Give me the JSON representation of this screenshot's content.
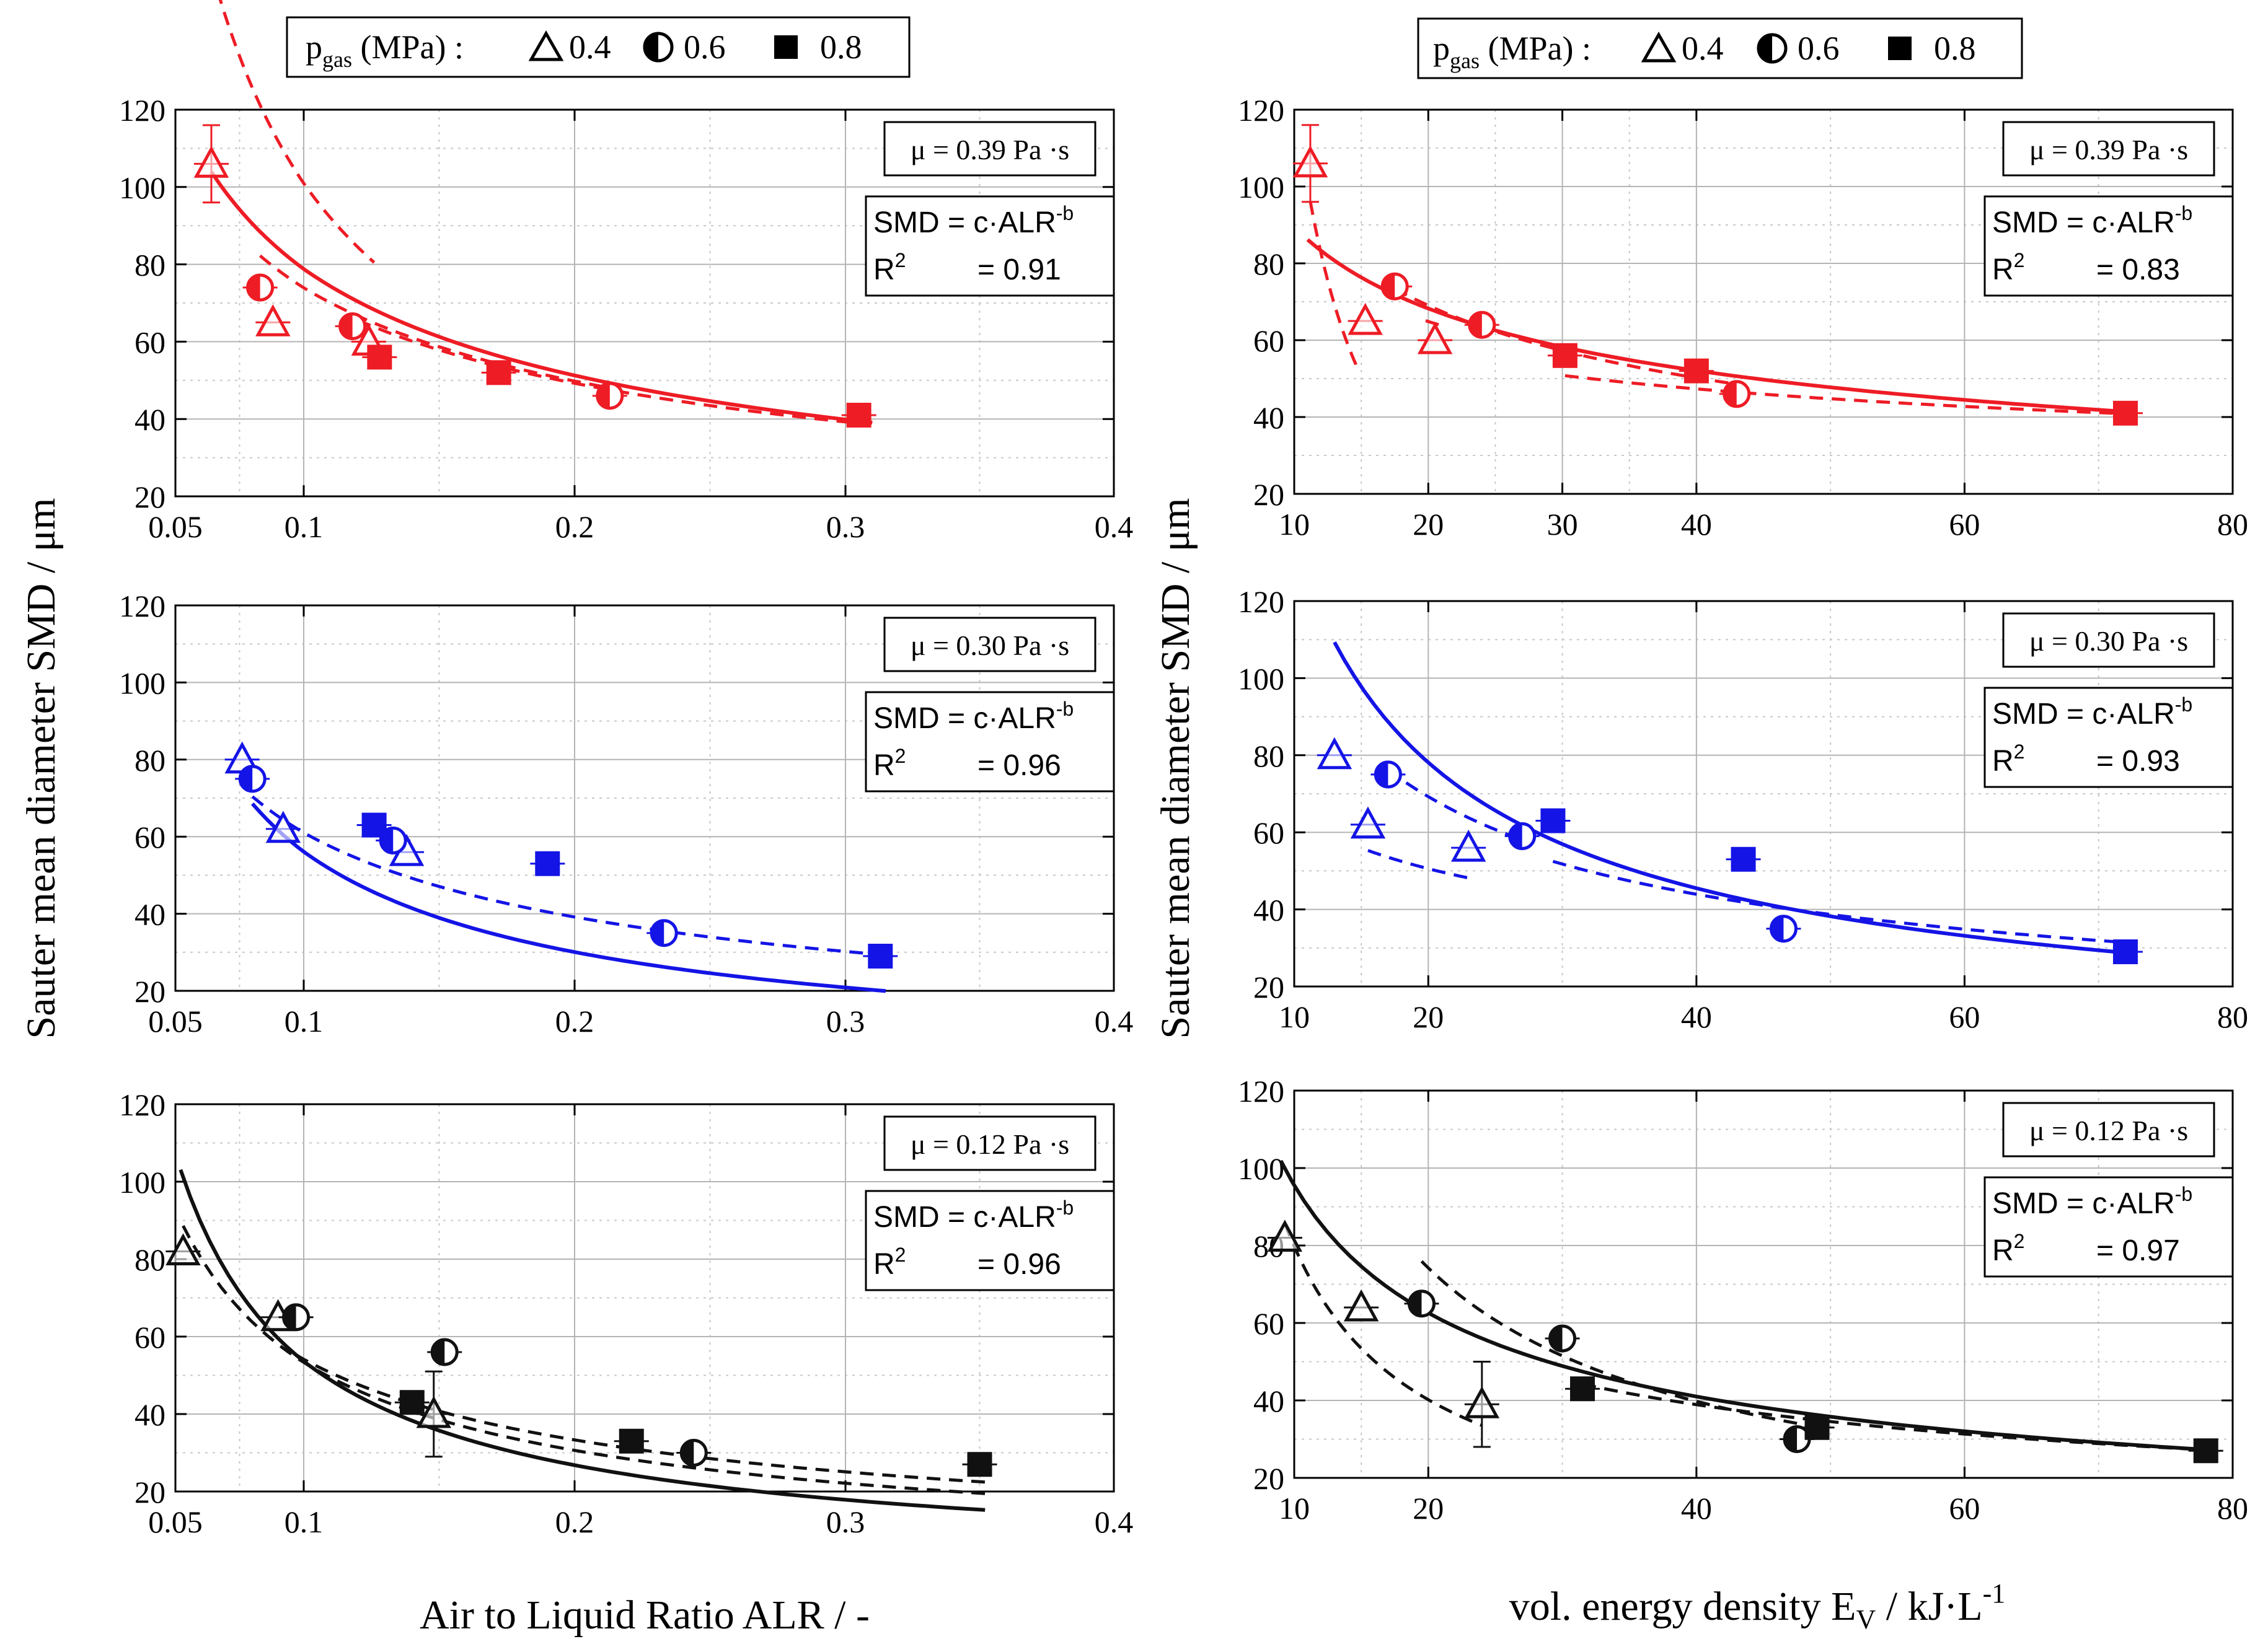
{
  "figure": {
    "ylabel_shared": "Sauter mean diameter SMD / μm",
    "xlabel_alr": "Air to Liquid Ratio ALR / -",
    "xlabel_ev": {
      "main": "vol. energy density E",
      "sub": "V",
      "unit": " / kJ·L",
      "sup": "-1"
    }
  },
  "legend": {
    "prefix": "p",
    "prefix_sub": "gas",
    "unit": " (MPa) :",
    "items": [
      {
        "marker": "open-triangle",
        "label": "0.4"
      },
      {
        "marker": "half-circle",
        "label": "0.6"
      },
      {
        "marker": "filled-square",
        "label": "0.8"
      }
    ]
  },
  "chart_data": [
    {
      "type": "scatter",
      "panel": "alr-red",
      "color": "#ee1c25",
      "xlim": [
        0.05,
        0.4
      ],
      "ylim": [
        20,
        120
      ],
      "xticks": [
        "0.05",
        "0.1",
        "0.2",
        "0.3",
        "0.4"
      ],
      "yticks": [
        "20",
        "40",
        "60",
        "80",
        "100",
        "120"
      ],
      "viscosity_label": "μ = 0.39 Pa ·s",
      "fit_label": "SMD  = c·ALR",
      "fit_sup": "-b",
      "r2_label": "R",
      "r2_sup": "2",
      "r2_value": "= 0.91",
      "series": [
        {
          "name": "0.4",
          "marker": "triangle",
          "points": [
            [
              0.064,
              106,
              10
            ],
            [
              0.088,
              65,
              0
            ],
            [
              0.124,
              60,
              0
            ]
          ]
        },
        {
          "name": "0.6",
          "marker": "half",
          "points": [
            [
              0.083,
              74,
              0
            ],
            [
              0.118,
              64,
              0
            ],
            [
              0.213,
              46,
              0
            ]
          ]
        },
        {
          "name": "0.8",
          "marker": "square",
          "points": [
            [
              0.128,
              56,
              0
            ],
            [
              0.172,
              52,
              0
            ],
            [
              0.305,
              41,
              0
            ]
          ]
        }
      ],
      "fits": [
        {
          "style": "solid",
          "c": 18.9,
          "b": 0.62,
          "x": [
            0.064,
            0.31
          ]
        },
        {
          "style": "dashed",
          "c": 10.57,
          "b": 0.98,
          "x": [
            0.064,
            0.126
          ]
        },
        {
          "style": "dashed",
          "c": 19.9,
          "b": 0.57,
          "x": [
            0.083,
            0.215
          ]
        },
        {
          "style": "dashed",
          "c": 20.0,
          "b": 0.56,
          "x": [
            0.12,
            0.305
          ]
        }
      ]
    },
    {
      "type": "scatter",
      "panel": "alr-blue",
      "color": "#1414e6",
      "xlim": [
        0.05,
        0.4
      ],
      "ylim": [
        20,
        120
      ],
      "xticks": [
        "0.05",
        "0.1",
        "0.2",
        "0.3",
        "0.4"
      ],
      "yticks": [
        "20",
        "40",
        "60",
        "80",
        "100",
        "120"
      ],
      "viscosity_label": "μ = 0.30 Pa ·s",
      "fit_label": "SMD  = c·ALR",
      "fit_sup": "-b",
      "r2_label": "R",
      "r2_sup": "2",
      "r2_value": "= 0.96",
      "series": [
        {
          "name": "0.4",
          "marker": "triangle",
          "points": [
            [
              0.076,
              80,
              0
            ],
            [
              0.092,
              62,
              0
            ],
            [
              0.138,
              56,
              0
            ]
          ]
        },
        {
          "name": "0.6",
          "marker": "half",
          "points": [
            [
              0.08,
              75,
              0
            ],
            [
              0.133,
              59,
              0
            ],
            [
              0.233,
              35,
              0
            ]
          ]
        },
        {
          "name": "0.8",
          "marker": "square",
          "points": [
            [
              0.126,
              63,
              0
            ],
            [
              0.19,
              53,
              0
            ],
            [
              0.313,
              29,
              0
            ]
          ]
        }
      ],
      "fits": [
        {
          "style": "solid",
          "c": 7.06,
          "b": 0.9,
          "x": [
            0.08,
            0.315
          ]
        },
        {
          "style": "dashed",
          "c": 13.98,
          "b": 0.64,
          "x": [
            0.08,
            0.315
          ]
        }
      ]
    },
    {
      "type": "scatter",
      "panel": "alr-black",
      "color": "#111111",
      "xlim": [
        0.05,
        0.4
      ],
      "ylim": [
        20,
        120
      ],
      "xticks": [
        "0.05",
        "0.1",
        "0.2",
        "0.3",
        "0.4"
      ],
      "yticks": [
        "20",
        "40",
        "60",
        "80",
        "100",
        "120"
      ],
      "viscosity_label": "μ = 0.12 Pa ·s",
      "fit_label": "SMD  = c·ALR",
      "fit_sup": "-b",
      "r2_label": "R",
      "r2_sup": "2",
      "r2_value": "= 0.96",
      "series": [
        {
          "name": "0.4",
          "marker": "triangle",
          "points": [
            [
              0.053,
              82,
              0
            ],
            [
              0.09,
              65,
              0
            ],
            [
              0.148,
              40,
              11
            ]
          ]
        },
        {
          "name": "0.6",
          "marker": "half",
          "points": [
            [
              0.097,
              65,
              0
            ],
            [
              0.152,
              56,
              0
            ],
            [
              0.244,
              30,
              0
            ]
          ]
        },
        {
          "name": "0.8",
          "marker": "square",
          "points": [
            [
              0.14,
              43,
              0
            ],
            [
              0.221,
              33,
              0
            ],
            [
              0.35,
              27,
              0
            ]
          ]
        }
      ],
      "fits": [
        {
          "style": "solid",
          "c": 5.36,
          "b": 1.0,
          "x": [
            0.052,
            0.352
          ]
        },
        {
          "style": "dashed",
          "c": 8.45,
          "b": 0.8,
          "x": [
            0.053,
            0.352
          ]
        },
        {
          "style": "dashed",
          "c": 10.8,
          "b": 0.7,
          "x": [
            0.097,
            0.352
          ]
        }
      ]
    },
    {
      "type": "scatter",
      "panel": "ev-red",
      "color": "#ee1c25",
      "xlim": [
        10,
        80
      ],
      "ylim": [
        20,
        120
      ],
      "xticks": [
        "10",
        "20",
        "30",
        "40",
        "60",
        "80"
      ],
      "yticks": [
        "20",
        "40",
        "60",
        "80",
        "100",
        "120"
      ],
      "viscosity_label": "μ = 0.39 Pa ·s",
      "fit_label": "SMD  = c·ALR",
      "fit_sup": "-b",
      "r2_label": "R",
      "r2_sup": "2",
      "r2_value": "= 0.83",
      "series": [
        {
          "name": "0.4",
          "marker": "triangle",
          "points": [
            [
              11.2,
              106,
              10
            ],
            [
              15.3,
              65,
              0
            ],
            [
              20.5,
              60,
              0
            ]
          ]
        },
        {
          "name": "0.6",
          "marker": "half",
          "points": [
            [
              17.5,
              74,
              0
            ],
            [
              24,
              64,
              0
            ],
            [
              43,
              46,
              0
            ]
          ]
        },
        {
          "name": "0.8",
          "marker": "square",
          "points": [
            [
              30.2,
              56,
              0
            ],
            [
              40,
              52,
              0
            ],
            [
              72,
              41,
              0
            ]
          ]
        }
      ],
      "fits": [
        {
          "style": "solid",
          "c": 219.5,
          "b": 0.39,
          "x": [
            11,
            72
          ]
        },
        {
          "style": "dashed",
          "c": 19550,
          "b": 2.2,
          "x": [
            11.2,
            14.8
          ]
        },
        {
          "style": "dashed",
          "c": 174.3,
          "b": 0.33,
          "x": [
            19.8,
            21.3
          ]
        },
        {
          "style": "dashed",
          "c": 273.9,
          "b": 0.46,
          "x": [
            17.5,
            43
          ]
        },
        {
          "style": "dashed",
          "c": 119,
          "b": 0.25,
          "x": [
            30.2,
            72
          ]
        }
      ]
    },
    {
      "type": "scatter",
      "panel": "ev-blue",
      "color": "#1414e6",
      "xlim": [
        10,
        80
      ],
      "ylim": [
        20,
        120
      ],
      "xticks": [
        "10",
        "20",
        "40",
        "60",
        "80"
      ],
      "yticks": [
        "20",
        "40",
        "60",
        "80",
        "100",
        "120"
      ],
      "viscosity_label": "μ = 0.30 Pa ·s",
      "fit_label": "SMD  = c·ALR",
      "fit_sup": "-b",
      "r2_label": "R",
      "r2_sup": "2",
      "r2_value": "= 0.93",
      "series": [
        {
          "name": "0.4",
          "marker": "triangle",
          "points": [
            [
              13,
              80,
              0
            ],
            [
              15.5,
              62,
              0
            ],
            [
              23,
              56,
              0
            ]
          ]
        },
        {
          "name": "0.6",
          "marker": "half",
          "points": [
            [
              17,
              75,
              0
            ],
            [
              27,
              59,
              0
            ],
            [
              46.5,
              35,
              0
            ]
          ]
        },
        {
          "name": "0.8",
          "marker": "square",
          "points": [
            [
              29.3,
              63,
              0
            ],
            [
              43.5,
              53,
              0
            ],
            [
              72,
              29,
              0
            ]
          ]
        }
      ],
      "fits": [
        {
          "style": "solid",
          "c": 808.3,
          "b": 0.78,
          "x": [
            13,
            72
          ]
        },
        {
          "style": "dashed",
          "c": 144.3,
          "b": 0.35,
          "x": [
            15.5,
            23
          ]
        },
        {
          "style": "dashed",
          "c": 405.6,
          "b": 0.59,
          "x": [
            17,
            27
          ]
        },
        {
          "style": "dashed",
          "c": 359.7,
          "b": 0.57,
          "x": [
            29.3,
            72
          ]
        }
      ]
    },
    {
      "type": "scatter",
      "panel": "ev-black",
      "color": "#111111",
      "xlim": [
        10,
        80
      ],
      "ylim": [
        20,
        120
      ],
      "xticks": [
        "10",
        "20",
        "40",
        "60",
        "80"
      ],
      "yticks": [
        "20",
        "40",
        "60",
        "80",
        "100",
        "120"
      ],
      "viscosity_label": "μ = 0.12 Pa ·s",
      "fit_label": "SMD  = c·ALR",
      "fit_sup": "-b",
      "r2_label": "R",
      "r2_sup": "2",
      "r2_value": "= 0.97",
      "series": [
        {
          "name": "0.4",
          "marker": "triangle",
          "points": [
            [
              9.3,
              82,
              0
            ],
            [
              15,
              64,
              0
            ],
            [
              24,
              39,
              11
            ]
          ]
        },
        {
          "name": "0.6",
          "marker": "half",
          "points": [
            [
              19.5,
              65,
              0
            ],
            [
              30,
              56,
              0
            ],
            [
              47.5,
              30,
              0
            ]
          ]
        },
        {
          "name": "0.8",
          "marker": "square",
          "points": [
            [
              31.5,
              43,
              0
            ],
            [
              49,
              33,
              0
            ],
            [
              78,
              27,
              0
            ]
          ]
        }
      ],
      "fits": [
        {
          "style": "solid",
          "c": 389.2,
          "b": 0.61,
          "x": [
            9,
            78
          ]
        },
        {
          "style": "dashed",
          "c": 780,
          "b": 0.99,
          "x": [
            9.3,
            24
          ]
        },
        {
          "style": "dashed",
          "c": 1100,
          "b": 0.9,
          "x": [
            19.5,
            47.5
          ]
        },
        {
          "style": "dashed",
          "c": 280,
          "b": 0.535,
          "x": [
            31.5,
            78
          ]
        }
      ]
    }
  ]
}
